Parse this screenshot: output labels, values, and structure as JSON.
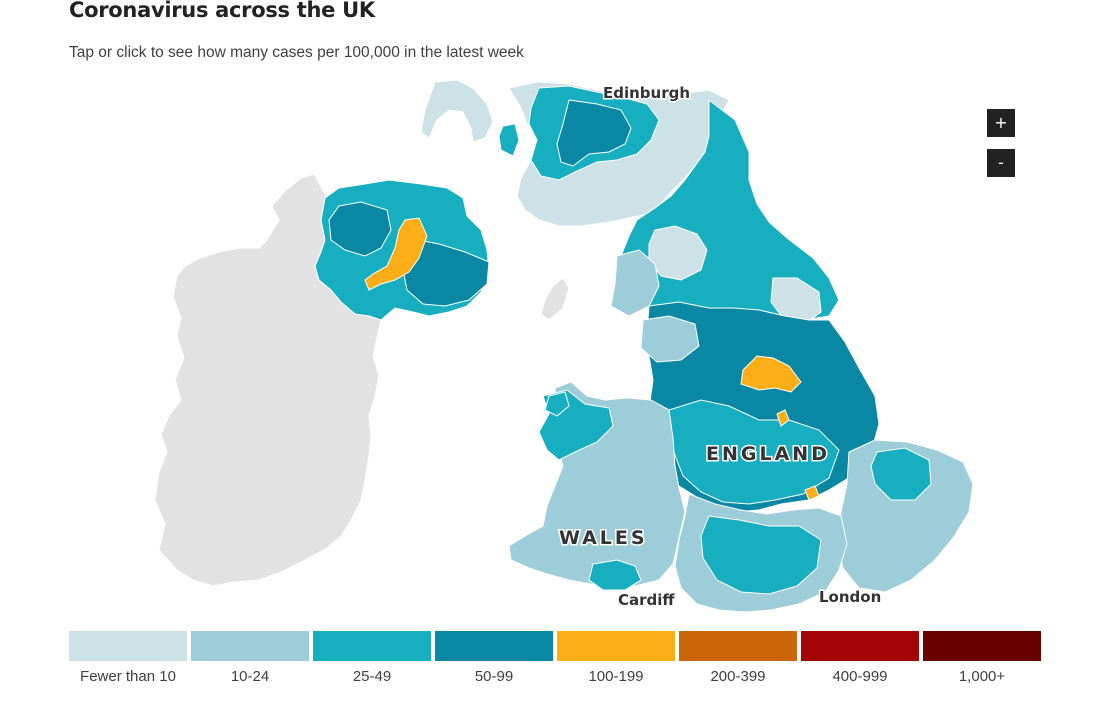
{
  "header": {
    "title": "Coronavirus across the UK",
    "subtitle": "Tap or click to see how many cases per 100,000 in the latest week"
  },
  "map": {
    "labels": {
      "edinburgh": "Edinburgh",
      "england": "ENGLAND",
      "wales": "WALES",
      "cardiff": "Cardiff",
      "london": "London"
    },
    "zoom_in": "+",
    "zoom_out": "-"
  },
  "legend": [
    {
      "label": "Fewer than 10",
      "color": "#cde2e7"
    },
    {
      "label": "10-24",
      "color": "#9ccdd8"
    },
    {
      "label": "25-49",
      "color": "#17afbf"
    },
    {
      "label": "50-99",
      "color": "#0a87a3"
    },
    {
      "label": "100-199",
      "color": "#fbae17"
    },
    {
      "label": "200-399",
      "color": "#cc6508"
    },
    {
      "label": "400-999",
      "color": "#a30507"
    },
    {
      "label": "1,000+",
      "color": "#680002"
    }
  ],
  "colors": {
    "ireland": "#e2e2e2",
    "sea": "#ffffff"
  }
}
